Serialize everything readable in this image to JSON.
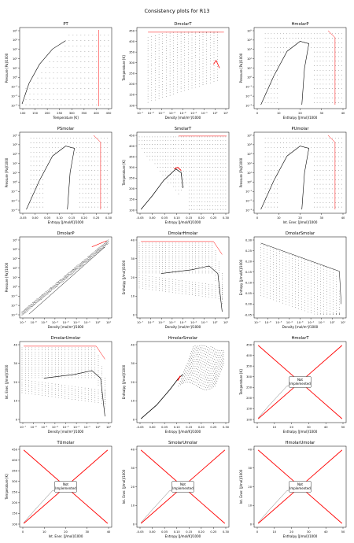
{
  "figure": {
    "suptitle": "Consistency plots for R13"
  },
  "chart_data": [
    {
      "type": "scatter",
      "title": "PT",
      "xlabel": "Temperature [K]",
      "ylabel": "Pressure [Pa]/1000",
      "xticks": [
        "100",
        "150",
        "200",
        "250",
        "300",
        "350",
        "400",
        "450"
      ],
      "yticks": [
        "10⁻³",
        "10⁻²",
        "10⁻¹",
        "10⁰",
        "10¹",
        "10²",
        "10³",
        "10⁴",
        "10⁵"
      ],
      "series": [
        {
          "values": [
            [
              100,
              0.001
            ],
            [
              130,
              0.08
            ],
            [
              160,
              1
            ],
            [
              200,
              15
            ],
            [
              250,
              200
            ],
            [
              302,
              1500
            ]
          ]
        }
      ],
      "kind": "grid-dome",
      "implemented": true
    },
    {
      "type": "scatter",
      "title": "DmolarT",
      "xlabel": "Density [mol/m³]/1000",
      "ylabel": "Temperature [K]",
      "xticks": [
        "10⁻⁷",
        "10⁻⁶",
        "10⁻⁵",
        "10⁻⁴",
        "10⁻³",
        "10⁻²",
        "10⁻¹",
        "10⁰",
        "10¹"
      ],
      "yticks": [
        "100",
        "150",
        "200",
        "250",
        "300",
        "350",
        "400",
        "450"
      ],
      "kind": "fan-logx",
      "implemented": true
    },
    {
      "type": "scatter",
      "title": "HmolarP",
      "xlabel": "Enthalpy [J/mol]/1000",
      "ylabel": "Pressure [Pa]/1000",
      "xticks": [
        "0",
        "10",
        "20",
        "30",
        "40"
      ],
      "yticks": [
        "10⁻³",
        "10⁻²",
        "10⁻¹",
        "10⁰",
        "10¹",
        "10²",
        "10³",
        "10⁴",
        "10⁵"
      ],
      "kind": "dome-logy",
      "implemented": true
    },
    {
      "type": "scatter",
      "title": "PSmolar",
      "xlabel": "Entropy [J/mol/K]/1000",
      "ylabel": "Pressure [Pa]/1000",
      "xticks": [
        "-0.05",
        "0.00",
        "0.05",
        "0.10",
        "0.15",
        "0.20",
        "0.25",
        "0.30"
      ],
      "yticks": [
        "10⁻³",
        "10⁻²",
        "10⁻¹",
        "10⁰",
        "10¹",
        "10²",
        "10³",
        "10⁴",
        "10⁵"
      ],
      "kind": "dome-logy-s",
      "implemented": true
    },
    {
      "type": "scatter",
      "title": "SmolarT",
      "xlabel": "Entropy [J/mol/K]/1000",
      "ylabel": "Temperature [K]",
      "xticks": [
        "-0.05",
        "0.00",
        "0.05",
        "0.10",
        "0.15",
        "0.20",
        "0.25",
        "0.30"
      ],
      "yticks": [
        "100",
        "150",
        "200",
        "250",
        "300",
        "350",
        "400",
        "450"
      ],
      "kind": "ts-dome",
      "implemented": true
    },
    {
      "type": "scatter",
      "title": "PUmolar",
      "xlabel": "Int. Ener. [J/mol]/1000",
      "ylabel": "Pressure [Pa]/1000",
      "xticks": [
        "0",
        "10",
        "20",
        "30",
        "40"
      ],
      "yticks": [
        "10⁻³",
        "10⁻²",
        "10⁻¹",
        "10⁰",
        "10¹",
        "10²",
        "10³",
        "10⁴",
        "10⁵"
      ],
      "kind": "dome-logy",
      "implemented": true
    },
    {
      "type": "scatter",
      "title": "DmolarP",
      "xlabel": "Density [mol/m³]/1000",
      "ylabel": "Pressure [Pa]/1000",
      "xticks": [
        "10⁻⁷",
        "10⁻⁶",
        "10⁻⁵",
        "10⁻⁴",
        "10⁻³",
        "10⁻²",
        "10⁻¹",
        "10⁰",
        "10¹"
      ],
      "yticks": [
        "10⁻³",
        "10⁻²",
        "10⁻¹",
        "10⁰",
        "10¹",
        "10²",
        "10³",
        "10⁴",
        "10⁵"
      ],
      "kind": "diag-loglog",
      "implemented": true
    },
    {
      "type": "scatter",
      "title": "DmolarHmolar",
      "xlabel": "Density [mol/m³]/1000",
      "ylabel": "Enthalpy [J/mol]/1000",
      "xticks": [
        "10⁻⁷",
        "10⁻⁶",
        "10⁻⁵",
        "10⁻⁴",
        "10⁻³",
        "10⁻²",
        "10⁻¹",
        "10⁰",
        "10¹"
      ],
      "yticks": [
        "0",
        "10",
        "20",
        "30",
        "40"
      ],
      "kind": "fan-flat",
      "implemented": true
    },
    {
      "type": "scatter",
      "title": "DmolarSmolar",
      "xlabel": "Density [mol/m³]/1000",
      "ylabel": "Entropy [J/mol/K]/1000",
      "xticks": [
        "10⁻⁷",
        "10⁻⁶",
        "10⁻⁵",
        "10⁻⁴",
        "10⁻³",
        "10⁻²",
        "10⁻¹",
        "10⁰",
        "10¹"
      ],
      "yticks": [
        "-0.05",
        "0.00",
        "0.05",
        "0.10",
        "0.15",
        "0.20",
        "0.25",
        "0.30"
      ],
      "kind": "fan-decline",
      "implemented": true
    },
    {
      "type": "scatter",
      "title": "DmolarUmolar",
      "xlabel": "Density [mol/m³]/1000",
      "ylabel": "Int. Ener. [J/mol]/1000",
      "xticks": [
        "10⁻⁷",
        "10⁻⁶",
        "10⁻⁵",
        "10⁻⁴",
        "10⁻³",
        "10⁻²",
        "10⁻¹",
        "10⁰",
        "10¹"
      ],
      "yticks": [
        "0",
        "10",
        "20",
        "30",
        "40"
      ],
      "kind": "fan-flat",
      "implemented": true
    },
    {
      "type": "scatter",
      "title": "HmolarSmolar",
      "xlabel": "Entropy [J/mol/K]/1000",
      "ylabel": "Enthalpy [J/mol]/1000",
      "xticks": [
        "-0.05",
        "0.00",
        "0.05",
        "0.10",
        "0.15",
        "0.20",
        "0.25",
        "0.30"
      ],
      "yticks": [
        "0",
        "10",
        "20",
        "30",
        "40"
      ],
      "kind": "hs-mesh",
      "implemented": true
    },
    {
      "type": "line",
      "title": "HmolarT",
      "xlabel": "Enthalpy [J/mol]/1000",
      "ylabel": "Temperature [K]",
      "xticks": [
        "0",
        "10",
        "20",
        "30",
        "40",
        "50"
      ],
      "yticks": [
        "100",
        "150",
        "200",
        "250",
        "300",
        "350",
        "400",
        "450"
      ],
      "kind": "notimpl",
      "implemented": false,
      "annotation": "Not\nImplemented"
    },
    {
      "type": "line",
      "title": "TUmolar",
      "xlabel": "Int. Ener. [J/mol]/1000",
      "ylabel": "Temperature [K]",
      "xticks": [
        "0",
        "10",
        "20",
        "30",
        "40"
      ],
      "yticks": [
        "100",
        "150",
        "200",
        "250",
        "300",
        "350",
        "400",
        "450"
      ],
      "kind": "notimpl",
      "implemented": false,
      "annotation": "Not\nImplemented"
    },
    {
      "type": "line",
      "title": "SmolarUmolar",
      "xlabel": "Entropy [J/mol/K]/1000",
      "ylabel": "Int. Ener. [J/mol]/1000",
      "xticks": [
        "-0.05",
        "0.00",
        "0.05",
        "0.10",
        "0.15",
        "0.20",
        "0.25",
        "0.30"
      ],
      "yticks": [
        "0",
        "10",
        "20",
        "30",
        "40"
      ],
      "kind": "notimpl",
      "implemented": false,
      "annotation": "Not\nImplemented"
    },
    {
      "type": "line",
      "title": "HmolarUmolar",
      "xlabel": "Enthalpy [J/mol]/1000",
      "ylabel": "Int. Ener. [J/mol]/1000",
      "xticks": [
        "0",
        "10",
        "20",
        "30",
        "40",
        "50"
      ],
      "yticks": [
        "0",
        "10",
        "20",
        "30",
        "40"
      ],
      "kind": "notimpl",
      "implemented": false,
      "annotation": "Not\nImplemented"
    }
  ]
}
